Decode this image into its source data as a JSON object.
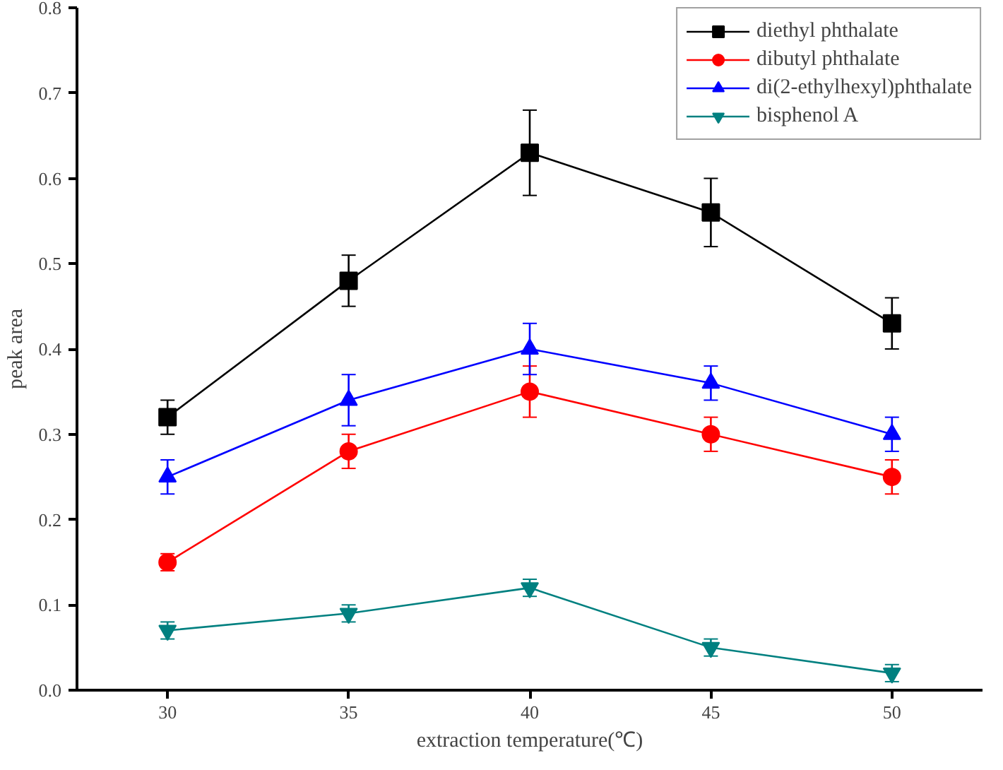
{
  "chart_data": {
    "type": "line",
    "xlabel": "extraction temperature(℃)",
    "ylabel": "peak area",
    "x": [
      30,
      35,
      40,
      45,
      50
    ],
    "xlim": [
      27.5,
      52.5
    ],
    "ylim": [
      0,
      0.8
    ],
    "xticks": [
      30,
      35,
      40,
      45,
      50
    ],
    "yticks": [
      {
        "value": 0,
        "label": "0.0"
      },
      0.1,
      0.2,
      0.3,
      0.4,
      0.5,
      0.6,
      0.7,
      0.8
    ],
    "grid": false,
    "legend": "top right",
    "line_style": "solid",
    "series": [
      {
        "name": "diethyl phthalate",
        "color": "#000000",
        "marker": "square",
        "values": [
          0.32,
          0.48,
          0.63,
          0.56,
          0.43
        ],
        "errors": [
          0.02,
          0.03,
          0.05,
          0.04,
          0.03
        ]
      },
      {
        "name": "dibutyl phthalate",
        "color": "#ff0000",
        "marker": "circle",
        "values": [
          0.15,
          0.28,
          0.35,
          0.3,
          0.25
        ],
        "errors": [
          0.01,
          0.02,
          0.03,
          0.02,
          0.02
        ]
      },
      {
        "name": "di(2-ethylhexyl)phthalate",
        "color": "#0000ff",
        "marker": "triangle",
        "values": [
          0.25,
          0.34,
          0.4,
          0.36,
          0.3
        ],
        "errors": [
          0.02,
          0.03,
          0.03,
          0.02,
          0.02
        ]
      },
      {
        "name": "bisphenol A",
        "color": "#008080",
        "marker": "triangle",
        "values": [
          0.07,
          0.09,
          0.12,
          0.05,
          0.02
        ],
        "errors": [
          0.01,
          0.01,
          0.01,
          0.01,
          0.01
        ]
      }
    ]
  }
}
